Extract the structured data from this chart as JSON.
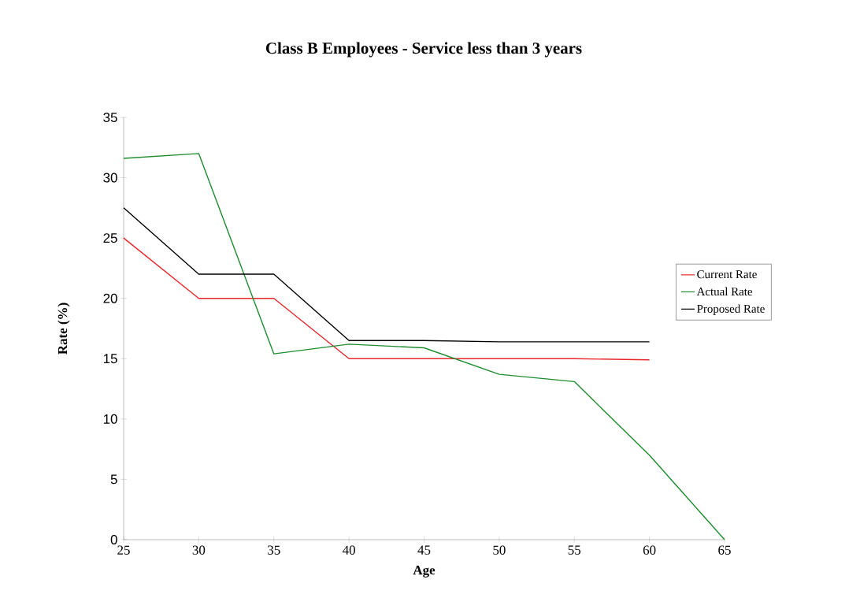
{
  "chart_data": {
    "type": "line",
    "title": "Class B Employees - Service less than 3 years",
    "xlabel": "Age",
    "ylabel": "Rate (%)",
    "x": [
      25,
      30,
      35,
      40,
      45,
      50,
      55,
      60,
      65
    ],
    "series": [
      {
        "name": "Current Rate",
        "color": "#e8262a",
        "values": [
          25,
          20,
          20,
          15,
          15,
          15,
          15,
          14.9,
          null
        ]
      },
      {
        "name": "Actual Rate",
        "color": "#1e8c2e",
        "values": [
          31.6,
          32.0,
          15.4,
          16.2,
          15.9,
          13.7,
          13.1,
          7.0,
          0
        ]
      },
      {
        "name": "Proposed Rate",
        "color": "#000000",
        "values": [
          27.5,
          22,
          22,
          16.5,
          16.5,
          16.4,
          16.4,
          16.4,
          null
        ]
      }
    ],
    "xlim": [
      25,
      65
    ],
    "ylim": [
      0,
      35
    ],
    "xticks": [
      25,
      30,
      35,
      40,
      45,
      50,
      55,
      60,
      65
    ],
    "yticks": [
      0,
      5,
      10,
      15,
      20,
      25,
      30,
      35
    ],
    "legend": "right",
    "marker": "none",
    "line_style": "solid"
  }
}
